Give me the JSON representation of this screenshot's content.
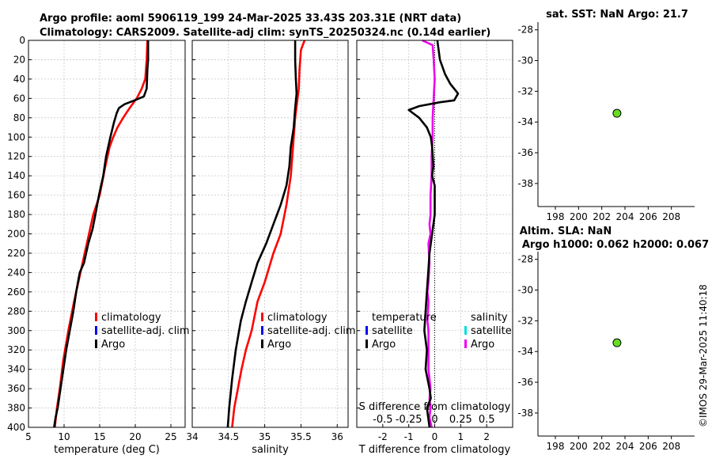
{
  "figure": {
    "title_line1": "Argo profile: aoml 5906119_199 24-Mar-2025 33.43S 203.31E (NRT data)",
    "title_line2": "Climatology: CARS2009. Satellite-adj clim: synTS_20250324.nc (0.14d earlier)",
    "copyright": "©IMOS 29-Mar-2025 11:40:18"
  },
  "chart_data": [
    {
      "id": "temperature",
      "type": "line",
      "xlabel": "temperature (deg C)",
      "xlim": [
        5,
        27
      ],
      "xticks": [
        "5",
        "10",
        "15",
        "20",
        "25"
      ],
      "xtick_values": [
        5,
        10,
        15,
        20,
        25
      ],
      "ylim": [
        0,
        400
      ],
      "yreverse": true,
      "yticks": [
        "0",
        "20",
        "40",
        "60",
        "80",
        "100",
        "120",
        "140",
        "160",
        "180",
        "200",
        "220",
        "240",
        "260",
        "280",
        "300",
        "320",
        "340",
        "360",
        "380",
        "400"
      ],
      "ytick_values": [
        0,
        20,
        40,
        60,
        80,
        100,
        120,
        140,
        160,
        180,
        200,
        220,
        240,
        260,
        280,
        300,
        320,
        340,
        360,
        380,
        400
      ],
      "grid": true,
      "legend_position": "lower-right",
      "legend": [
        {
          "label": "climatology",
          "color": "#ff0000"
        },
        {
          "label": "satellite-adj. clim",
          "color": "#0000ff"
        },
        {
          "label": "Argo",
          "color": "#000000"
        }
      ],
      "series": [
        {
          "name": "climatology",
          "color": "#ff0000",
          "x": [
            21.7,
            21.6,
            21.4,
            20.9,
            20.2,
            19.2,
            18.3,
            17.5,
            16.9,
            16.4,
            15.8,
            15.0,
            14.1,
            13.2,
            12.3,
            11.4,
            10.6,
            9.9,
            9.4,
            9.0,
            8.7
          ],
          "y": [
            0,
            20,
            40,
            50,
            60,
            70,
            80,
            90,
            100,
            110,
            130,
            160,
            180,
            210,
            240,
            270,
            300,
            330,
            360,
            380,
            400
          ]
        },
        {
          "name": "Argo",
          "color": "#000000",
          "x": [
            21.8,
            21.8,
            21.7,
            21.6,
            21.2,
            19.9,
            18.5,
            17.7,
            17.4,
            17.0,
            16.5,
            16.2,
            15.9,
            15.5,
            14.9,
            14.4,
            14.0,
            13.4,
            12.8,
            12.2,
            11.7,
            11.3,
            10.8,
            10.3,
            9.9,
            9.5,
            9.1,
            8.8,
            8.6
          ],
          "y": [
            0,
            20,
            30,
            50,
            58,
            62,
            66,
            70,
            75,
            85,
            100,
            110,
            120,
            140,
            160,
            180,
            195,
            210,
            230,
            240,
            260,
            280,
            300,
            320,
            340,
            360,
            380,
            390,
            400
          ]
        }
      ]
    },
    {
      "id": "salinity",
      "type": "line",
      "xlabel": "salinity",
      "xlim": [
        34,
        36.15
      ],
      "xticks": [
        "34",
        "34.5",
        "35",
        "35.5",
        "36"
      ],
      "xtick_values": [
        34,
        34.5,
        35,
        35.5,
        36
      ],
      "ylim": [
        0,
        400
      ],
      "yreverse": true,
      "grid": true,
      "legend_position": "lower-right",
      "legend": [
        {
          "label": "climatology",
          "color": "#ff0000"
        },
        {
          "label": "satellite-adj. clim",
          "color": "#0000ff"
        },
        {
          "label": "Argo",
          "color": "#000000"
        }
      ],
      "series": [
        {
          "name": "climatology",
          "color": "#ff0000",
          "x": [
            35.55,
            35.5,
            35.48,
            35.47,
            35.42,
            35.4,
            35.36,
            35.3,
            35.22,
            35.12,
            35.0,
            34.9,
            34.82,
            34.74,
            34.68,
            34.63,
            34.58,
            34.55
          ],
          "y": [
            0,
            10,
            30,
            50,
            80,
            100,
            140,
            170,
            200,
            220,
            250,
            270,
            300,
            320,
            340,
            360,
            380,
            400
          ]
        },
        {
          "name": "Argo",
          "color": "#000000",
          "x": [
            35.42,
            35.42,
            35.43,
            35.44,
            35.42,
            35.4,
            35.36,
            35.34,
            35.3,
            35.22,
            35.12,
            35.02,
            34.9,
            34.82,
            34.74,
            34.67,
            34.6,
            34.55,
            34.51,
            34.49
          ],
          "y": [
            0,
            20,
            40,
            55,
            70,
            90,
            110,
            130,
            150,
            170,
            190,
            210,
            230,
            250,
            270,
            290,
            320,
            350,
            380,
            400
          ]
        }
      ]
    },
    {
      "id": "difference",
      "type": "line",
      "xlabel": "T difference from climatology",
      "xlim": [
        -3,
        3
      ],
      "xticks": [
        "-2",
        "-1",
        "0",
        "1",
        "2"
      ],
      "xtick_values": [
        -2,
        -1,
        0,
        1,
        2
      ],
      "top_axis_label": "S difference from climatology",
      "top_ticks": [
        "-0.5",
        "-0.25",
        "0",
        "0.25",
        "0.5"
      ],
      "top_tick_values": [
        -0.5,
        -0.25,
        0,
        0.25,
        0.5
      ],
      "top_xlim": [
        -0.75,
        0.75
      ],
      "ylim": [
        0,
        400
      ],
      "yreverse": true,
      "grid": true,
      "zero_line": true,
      "legend_position": "lower",
      "legend_temperature_title": "temperature",
      "legend_salinity_title": "salinity",
      "legend_temperature": [
        {
          "label": "satellite",
          "color": "#0000ff"
        },
        {
          "label": "Argo",
          "color": "#000000"
        }
      ],
      "legend_salinity": [
        {
          "label": "satellite",
          "color": "#00dddd"
        },
        {
          "label": "Argo",
          "color": "#ee00ee"
        }
      ],
      "series": [
        {
          "name": "salinity Argo",
          "color": "#ee00ee",
          "axis": "top",
          "x": [
            -0.12,
            -0.02,
            -0.01,
            0,
            -0.01,
            -0.02,
            -0.02,
            -0.03,
            -0.03,
            -0.04,
            -0.04,
            -0.05,
            -0.04,
            -0.06,
            -0.05,
            -0.06,
            -0.07,
            -0.06,
            -0.07,
            -0.06,
            -0.06,
            -0.06,
            -0.05,
            -0.04,
            -0.05,
            -0.04,
            -0.05,
            -0.03
          ],
          "y": [
            0,
            5,
            20,
            40,
            60,
            80,
            100,
            120,
            140,
            160,
            180,
            190,
            200,
            210,
            230,
            250,
            260,
            270,
            290,
            300,
            320,
            340,
            350,
            360,
            370,
            380,
            390,
            400
          ]
        },
        {
          "name": "temperature Argo",
          "color": "#000000",
          "axis": "bottom",
          "x": [
            0.1,
            0.2,
            0.4,
            0.6,
            0.9,
            0.75,
            0.2,
            -0.6,
            -1.0,
            -0.6,
            -0.3,
            -0.15,
            -0.1,
            -0.05,
            -0.1,
            0,
            0,
            -0.1,
            -0.2,
            -0.25,
            -0.3,
            -0.35,
            -0.4,
            -0.3,
            -0.35,
            -0.2,
            -0.15,
            -0.3,
            -0.25,
            -0.2
          ],
          "y": [
            0,
            20,
            35,
            45,
            55,
            62,
            64,
            68,
            72,
            80,
            90,
            100,
            110,
            130,
            140,
            150,
            180,
            200,
            220,
            240,
            260,
            280,
            300,
            320,
            340,
            360,
            370,
            380,
            390,
            400
          ]
        }
      ]
    },
    {
      "id": "sst_map",
      "type": "scatter",
      "title": "sat. SST: NaN Argo: 21.7",
      "xlim": [
        196.5,
        210
      ],
      "xticks": [
        "198",
        "200",
        "202",
        "204",
        "206",
        "208"
      ],
      "xtick_values": [
        198,
        200,
        202,
        204,
        206,
        208
      ],
      "ylim": [
        -39.5,
        -27.5
      ],
      "yticks": [
        "-28",
        "-30",
        "-32",
        "-34",
        "-36",
        "-38"
      ],
      "ytick_values": [
        -28,
        -30,
        -32,
        -34,
        -36,
        -38
      ],
      "point": {
        "x": 203.31,
        "y": -33.43,
        "color": "#66dd22"
      }
    },
    {
      "id": "sla_map",
      "type": "scatter",
      "title": "Altim. SLA: NaN",
      "subtitle": "Argo h1000: 0.062 h2000: 0.067",
      "xlim": [
        196.5,
        210
      ],
      "xticks": [
        "198",
        "200",
        "202",
        "204",
        "206",
        "208"
      ],
      "xtick_values": [
        198,
        200,
        202,
        204,
        206,
        208
      ],
      "ylim": [
        -39.5,
        -27.5
      ],
      "yticks": [
        "-28",
        "-30",
        "-32",
        "-34",
        "-36",
        "-38"
      ],
      "ytick_values": [
        -28,
        -30,
        -32,
        -34,
        -36,
        -38
      ],
      "point": {
        "x": 203.31,
        "y": -33.43,
        "color": "#66dd22"
      }
    }
  ]
}
